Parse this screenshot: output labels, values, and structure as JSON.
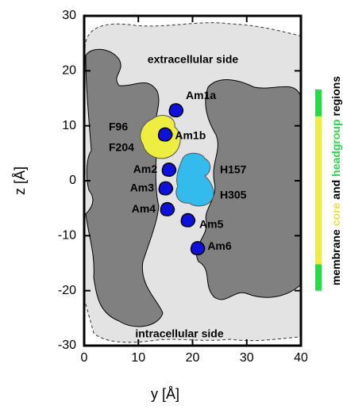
{
  "chart_data": {
    "type": "scatter",
    "xlabel": "y [Å]",
    "ylabel": "z [Å]",
    "xlim": [
      0,
      40
    ],
    "ylim": [
      -30,
      30
    ],
    "xticks": [
      0,
      10,
      20,
      30,
      40
    ],
    "yticks": [
      -30,
      -20,
      -10,
      0,
      10,
      20,
      30
    ],
    "marker_color": "#1010dd",
    "points": [
      {
        "label": "Am1a",
        "x": 17,
        "y": 12.8
      },
      {
        "label": "Am1b",
        "x": 15,
        "y": 8.4
      },
      {
        "label": "Am2",
        "x": 15.7,
        "y": 2
      },
      {
        "label": "Am3",
        "x": 15.1,
        "y": -1.4
      },
      {
        "label": "Am4",
        "x": 15.4,
        "y": -5.2
      },
      {
        "label": "Am5",
        "x": 19.2,
        "y": -7.2
      },
      {
        "label": "Am6",
        "x": 21,
        "y": -12.3
      }
    ],
    "annotations": [
      "extracellular side",
      "intracellular side",
      "F96",
      "F204",
      "H157",
      "H305"
    ],
    "side_label": [
      {
        "text": "membrane",
        "color": "#000000"
      },
      {
        "text": "core",
        "color": "#e6e630"
      },
      {
        "text": "and",
        "color": "#000000"
      },
      {
        "text": "headgroup",
        "color": "#22dd44"
      },
      {
        "text": "regions",
        "color": "#000000"
      }
    ],
    "bands": [
      {
        "range": [
          11.7,
          16.6
        ],
        "color": "#22dd44"
      },
      {
        "range": [
          -15.2,
          11.7
        ],
        "color": "#eeee40"
      },
      {
        "range": [
          -20,
          -15.2
        ],
        "color": "#22dd44"
      }
    ]
  }
}
